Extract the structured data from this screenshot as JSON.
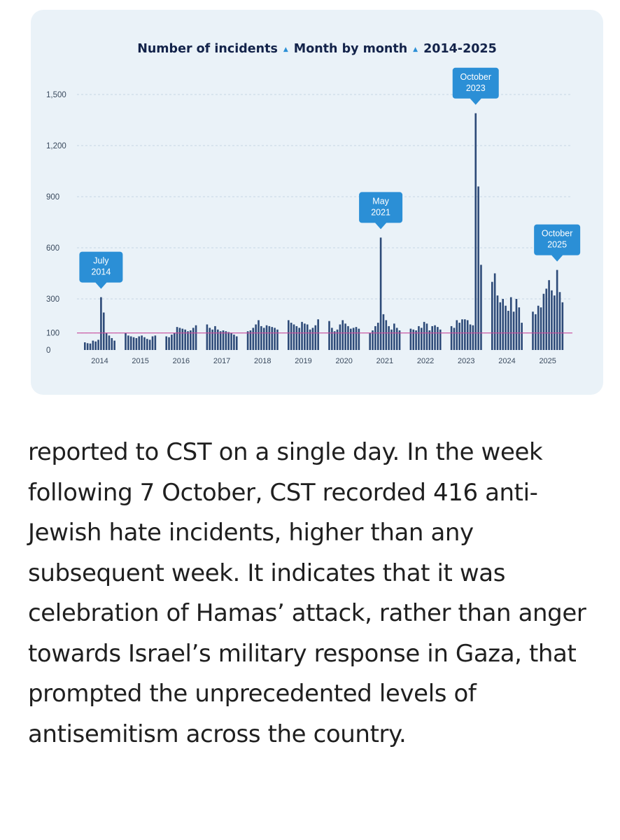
{
  "chart_data": {
    "type": "bar",
    "title_parts": [
      "Number of incidents",
      "Month by month",
      "2014-2025"
    ],
    "ylim": [
      0,
      1500
    ],
    "yticks": [
      0,
      100,
      300,
      600,
      900,
      1200,
      1500
    ],
    "ytick_labels": [
      "0",
      "100",
      "300",
      "600",
      "900",
      "1,200",
      "1,500"
    ],
    "reference_line": 100,
    "grid": true,
    "colors": {
      "bar": "#2d4a78",
      "reference_line": "#c94b9c",
      "callout": "#2b8fd6",
      "grid": "#c7d6e4"
    },
    "years": [
      "2014",
      "2015",
      "2016",
      "2017",
      "2018",
      "2019",
      "2020",
      "2021",
      "2022",
      "2023",
      "2024",
      "2025"
    ],
    "series": [
      {
        "values": [
          45,
          40,
          38,
          55,
          50,
          60,
          310,
          220,
          100,
          85,
          70,
          55
        ]
      },
      {
        "values": [
          100,
          85,
          80,
          75,
          70,
          80,
          85,
          75,
          65,
          60,
          80,
          85
        ]
      },
      {
        "values": [
          80,
          75,
          90,
          100,
          135,
          130,
          125,
          120,
          110,
          115,
          130,
          145
        ]
      },
      {
        "values": [
          150,
          130,
          120,
          140,
          120,
          110,
          115,
          110,
          105,
          100,
          90,
          80
        ]
      },
      {
        "values": [
          110,
          115,
          130,
          150,
          175,
          140,
          130,
          145,
          140,
          135,
          130,
          120
        ]
      },
      {
        "values": [
          175,
          160,
          150,
          140,
          130,
          165,
          155,
          150,
          120,
          130,
          145,
          180
        ]
      },
      {
        "values": [
          170,
          130,
          110,
          120,
          150,
          175,
          155,
          140,
          125,
          130,
          135,
          125
        ]
      },
      {
        "values": [
          100,
          115,
          140,
          160,
          660,
          210,
          175,
          140,
          120,
          155,
          130,
          115
        ]
      },
      {
        "values": [
          125,
          120,
          115,
          140,
          130,
          165,
          155,
          115,
          140,
          145,
          135,
          120
        ]
      },
      {
        "values": [
          140,
          130,
          175,
          160,
          180,
          180,
          175,
          150,
          145,
          1390,
          960,
          500
        ]
      },
      {
        "values": [
          400,
          450,
          320,
          280,
          300,
          260,
          230,
          310,
          225,
          300,
          250,
          160
        ]
      },
      {
        "values": [
          225,
          210,
          260,
          250,
          330,
          360,
          410,
          350,
          320,
          470,
          340,
          280
        ]
      }
    ],
    "annotations": [
      {
        "label_lines": [
          "July",
          "2014"
        ],
        "year_index": 0,
        "month_index": 6,
        "value": 310
      },
      {
        "label_lines": [
          "May",
          "2021"
        ],
        "year_index": 7,
        "month_index": 4,
        "value": 660
      },
      {
        "label_lines": [
          "October",
          "2023"
        ],
        "year_index": 9,
        "month_index": 9,
        "value": 1390
      },
      {
        "label_lines": [
          "October",
          "2025"
        ],
        "year_index": 11,
        "month_index": 9,
        "value": 470
      }
    ]
  },
  "article": {
    "paragraph": "reported to CST on a single day. In the week following 7 October, CST recorded 416 anti-Jewish hate incidents, higher than any subsequent week. It indicates that it was celebration of Hamas’ attack, rather than anger towards Israel’s military response in Gaza, that prompted the unprecedented levels of antisemitism across the country."
  }
}
